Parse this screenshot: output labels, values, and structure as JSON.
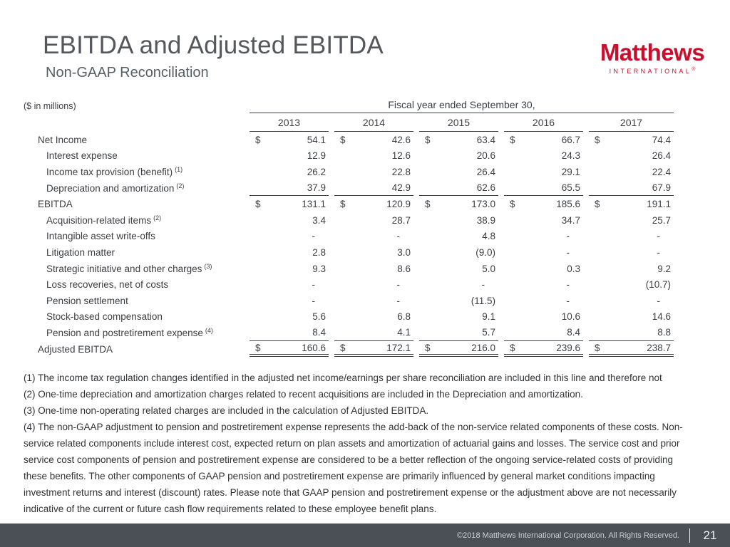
{
  "slide": {
    "title": "EBITDA and Adjusted EBITDA",
    "subtitle": "Non-GAAP Reconciliation",
    "units_note": "($ in millions)"
  },
  "logo": {
    "name": "Matthews",
    "sub": "INTERNATIONAL",
    "reg": "®",
    "color": "#c8102e"
  },
  "table": {
    "span_header": "Fiscal year ended September 30,",
    "years": [
      "2013",
      "2014",
      "2015",
      "2016",
      "2017"
    ],
    "rows": [
      {
        "label": "Net Income",
        "sup": "",
        "indent": false,
        "dollar": true,
        "rule_below": false,
        "double_rule_below": false,
        "values": [
          "54.1",
          "42.6",
          "63.4",
          "66.7",
          "74.4"
        ]
      },
      {
        "label": "Interest expense",
        "sup": "",
        "indent": true,
        "dollar": false,
        "rule_below": false,
        "double_rule_below": false,
        "values": [
          "12.9",
          "12.6",
          "20.6",
          "24.3",
          "26.4"
        ]
      },
      {
        "label": "Income tax provision (benefit)",
        "sup": "(1)",
        "indent": true,
        "dollar": false,
        "rule_below": false,
        "double_rule_below": false,
        "values": [
          "26.2",
          "22.8",
          "26.4",
          "29.1",
          "22.4"
        ]
      },
      {
        "label": "Depreciation and amortization",
        "sup": "(2)",
        "indent": true,
        "dollar": false,
        "rule_below": true,
        "double_rule_below": false,
        "values": [
          "37.9",
          "42.9",
          "62.6",
          "65.5",
          "67.9"
        ]
      },
      {
        "label": "EBITDA",
        "sup": "",
        "indent": false,
        "dollar": true,
        "rule_below": false,
        "double_rule_below": false,
        "values": [
          "131.1",
          "120.9",
          "173.0",
          "185.6",
          "191.1"
        ]
      },
      {
        "label": "Acquisition-related items",
        "sup": "(2)",
        "indent": true,
        "dollar": false,
        "rule_below": false,
        "double_rule_below": false,
        "values": [
          "3.4",
          "28.7",
          "38.9",
          "34.7",
          "25.7"
        ]
      },
      {
        "label": "Intangible asset write-offs",
        "sup": "",
        "indent": true,
        "dollar": false,
        "rule_below": false,
        "double_rule_below": false,
        "values": [
          "-",
          "-",
          "4.8",
          "-",
          "-"
        ]
      },
      {
        "label": "Litigation matter",
        "sup": "",
        "indent": true,
        "dollar": false,
        "rule_below": false,
        "double_rule_below": false,
        "values": [
          "2.8",
          "3.0",
          "(9.0)",
          "-",
          "-"
        ]
      },
      {
        "label": "Strategic initiative and other charges",
        "sup": "(3)",
        "indent": true,
        "dollar": false,
        "rule_below": false,
        "double_rule_below": false,
        "values": [
          "9.3",
          "8.6",
          "5.0",
          "0.3",
          "9.2"
        ]
      },
      {
        "label": "Loss recoveries, net of costs",
        "sup": "",
        "indent": true,
        "dollar": false,
        "rule_below": false,
        "double_rule_below": false,
        "values": [
          "-",
          "-",
          "-",
          "-",
          "(10.7)"
        ]
      },
      {
        "label": "Pension settlement",
        "sup": "",
        "indent": true,
        "dollar": false,
        "rule_below": false,
        "double_rule_below": false,
        "values": [
          "-",
          "-",
          "(11.5)",
          "-",
          "-"
        ]
      },
      {
        "label": "Stock-based compensation",
        "sup": "",
        "indent": true,
        "dollar": false,
        "rule_below": false,
        "double_rule_below": false,
        "values": [
          "5.6",
          "6.8",
          "9.1",
          "10.6",
          "14.6"
        ]
      },
      {
        "label": "Pension and postretirement expense",
        "sup": "(4)",
        "indent": true,
        "dollar": false,
        "rule_below": true,
        "double_rule_below": false,
        "values": [
          "8.4",
          "4.1",
          "5.7",
          "8.4",
          "8.8"
        ]
      },
      {
        "label": "Adjusted EBITDA",
        "sup": "",
        "indent": false,
        "dollar": true,
        "rule_below": false,
        "double_rule_below": true,
        "values": [
          "160.6",
          "172.1",
          "216.0",
          "239.6",
          "238.7"
        ]
      }
    ]
  },
  "footnotes": [
    "(1)  The income tax regulation changes identified in the adjusted net income/earnings per share reconciliation are included in this line and therefore not",
    "(2)  One-time depreciation and amortization charges related to recent acquisitions are included in the Depreciation and amortization.",
    "(3)  One-time non-operating related charges are included in the calculation of Adjusted EBITDA.",
    "(4)  The non-GAAP adjustment to pension and postretirement expense represents the add-back of the non-service related components of these costs. Non-service related components include interest cost, expected return on plan assets and amortization of actuarial gains and losses.  The service cost and prior service cost components of pension and postretirement expense are considered to be a better reflection of the ongoing service-related costs of providing these benefits.  The other components of GAAP pension and postretirement expense are primarily influenced by general market conditions impacting investment returns and interest (discount) rates.  Please note that GAAP pension and postretirement expense or the adjustment above are not necessarily indicative of the current or future cash flow requirements related to these employee benefit plans."
  ],
  "footer": {
    "copyright": "©2018 Matthews International Corporation. All Rights Reserved.",
    "page": "21"
  }
}
